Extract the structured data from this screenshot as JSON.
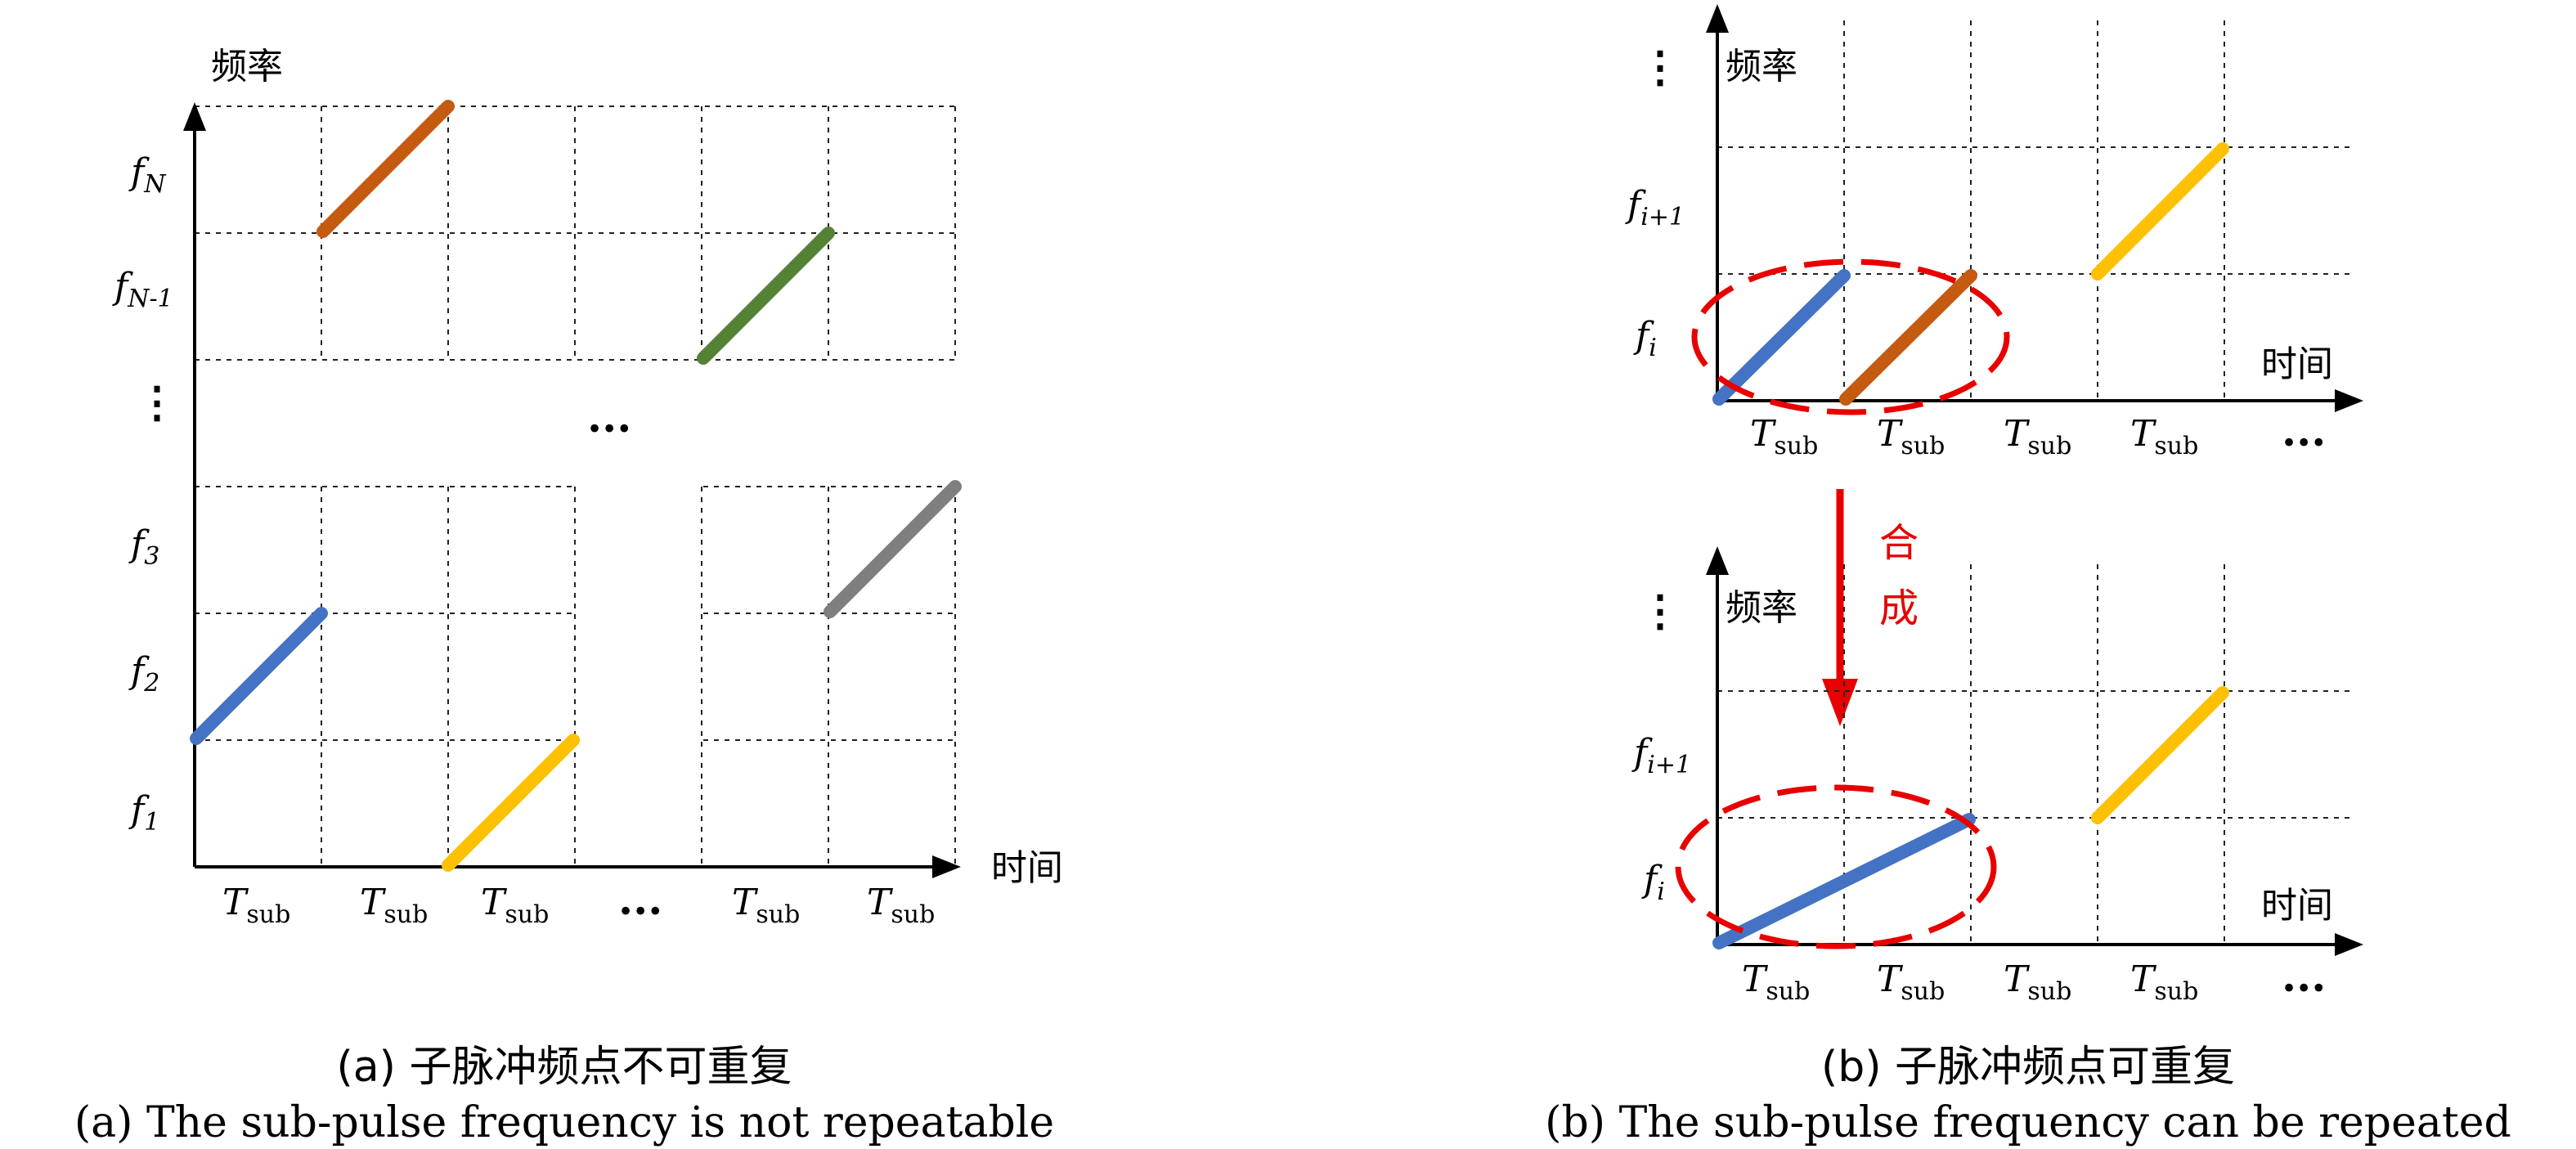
{
  "colors": {
    "blue": "#4472C4",
    "orange": "#C55A11",
    "green": "#548235",
    "gray": "#7F7F7F",
    "yellow": "#FFC000",
    "red": "#E80000"
  },
  "panel_a": {
    "y_axis_label": "频率",
    "x_axis_label": "时间",
    "y_labels": [
      {
        "main": "f",
        "sub": "N"
      },
      {
        "main": "f",
        "sub": "N-1"
      },
      {
        "main": "f",
        "sub": "3"
      },
      {
        "main": "f",
        "sub": "2"
      },
      {
        "main": "f",
        "sub": "1"
      }
    ],
    "x_labels": [
      {
        "main": "T",
        "sub": "sub"
      },
      {
        "main": "T",
        "sub": "sub"
      },
      {
        "main": "T",
        "sub": "sub"
      },
      {
        "main": "T",
        "sub": "sub"
      },
      {
        "main": "T",
        "sub": "sub"
      }
    ],
    "ellipsis": "...",
    "caption_cn": "(a) 子脉冲频点不可重复",
    "caption_en": "(a) The sub-pulse frequency is not repeatable"
  },
  "panel_b": {
    "y_axis_label": "频率",
    "x_axis_label": "时间",
    "y_labels_top": [
      {
        "main": "f",
        "sub": "i+1"
      },
      {
        "main": "f",
        "sub": "i"
      }
    ],
    "y_labels_bottom": [
      {
        "main": "f",
        "sub": "i+1"
      },
      {
        "main": "f",
        "sub": "i"
      }
    ],
    "x_labels": [
      {
        "main": "T",
        "sub": "sub"
      },
      {
        "main": "T",
        "sub": "sub"
      },
      {
        "main": "T",
        "sub": "sub"
      },
      {
        "main": "T",
        "sub": "sub"
      }
    ],
    "ellipsis": "...",
    "synth_label": [
      "合",
      "成"
    ],
    "caption_cn": "(b) 子脉冲频点可重复",
    "caption_en": "(b) The sub-pulse frequency can be repeated"
  }
}
